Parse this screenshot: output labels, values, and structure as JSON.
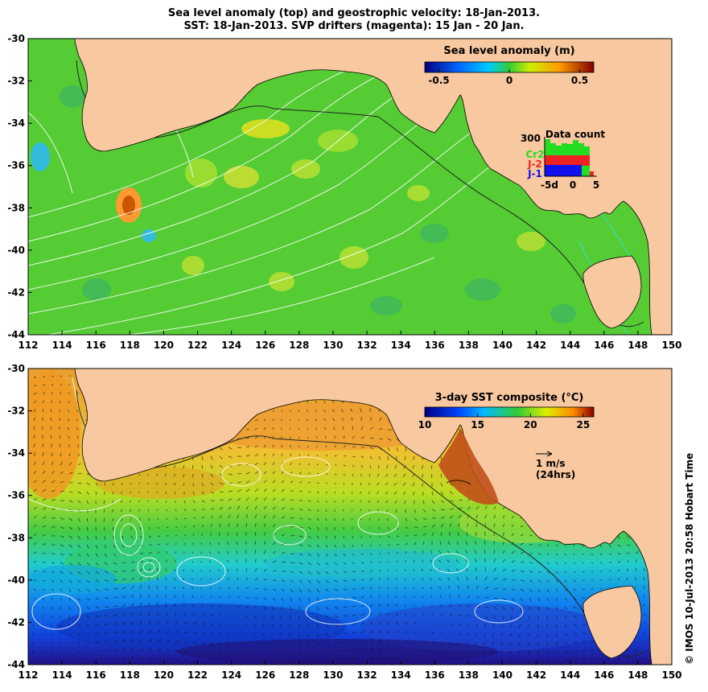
{
  "titles": {
    "line1": "Sea level anomaly (top) and geostrophic velocity: 18-Jan-2013.",
    "line2": "SST: 18-Jan-2013. SVP drifters (magenta): 15 Jan - 20 Jan."
  },
  "axes": {
    "lon_ticks": [
      "112",
      "114",
      "116",
      "118",
      "120",
      "122",
      "124",
      "126",
      "128",
      "130",
      "132",
      "134",
      "136",
      "138",
      "140",
      "142",
      "144",
      "146",
      "148",
      "150"
    ],
    "lat_ticks": [
      "-30",
      "-32",
      "-34",
      "-36",
      "-38",
      "-40",
      "-42",
      "-44"
    ],
    "lon_range": [
      112,
      150
    ],
    "lat_range": [
      -44,
      -30
    ]
  },
  "top_panel": {
    "colorbar": {
      "title": "Sea level anomaly (m)",
      "tick_labels": [
        "-0.5",
        "0",
        "0.5"
      ],
      "range": [
        -0.6,
        0.6
      ]
    },
    "data_count": {
      "title": "Data count",
      "y_max_label": "300",
      "x_labels": [
        "-5d",
        "0",
        "5"
      ],
      "series": [
        {
          "name": "Cr2",
          "color": "#22dd22"
        },
        {
          "name": "J-2",
          "color": "#ee2222"
        },
        {
          "name": "J-1",
          "color": "#1111ee"
        }
      ]
    }
  },
  "bottom_panel": {
    "colorbar": {
      "title": "3-day SST composite (°C)",
      "tick_labels": [
        "10",
        "15",
        "20",
        "25"
      ],
      "range": [
        10,
        26
      ]
    },
    "velocity_scale": {
      "label": "1 m/s",
      "sublabel": "(24hrs)"
    }
  },
  "credit": "© IMOS 10-Jul-2013 20:58 Hobart Time",
  "colors": {
    "land": "#f8c8a0",
    "ocean_top": "#55cc33",
    "ocean_bottom_north": "#e8a030",
    "ocean_bottom_south": "#2050d0"
  }
}
